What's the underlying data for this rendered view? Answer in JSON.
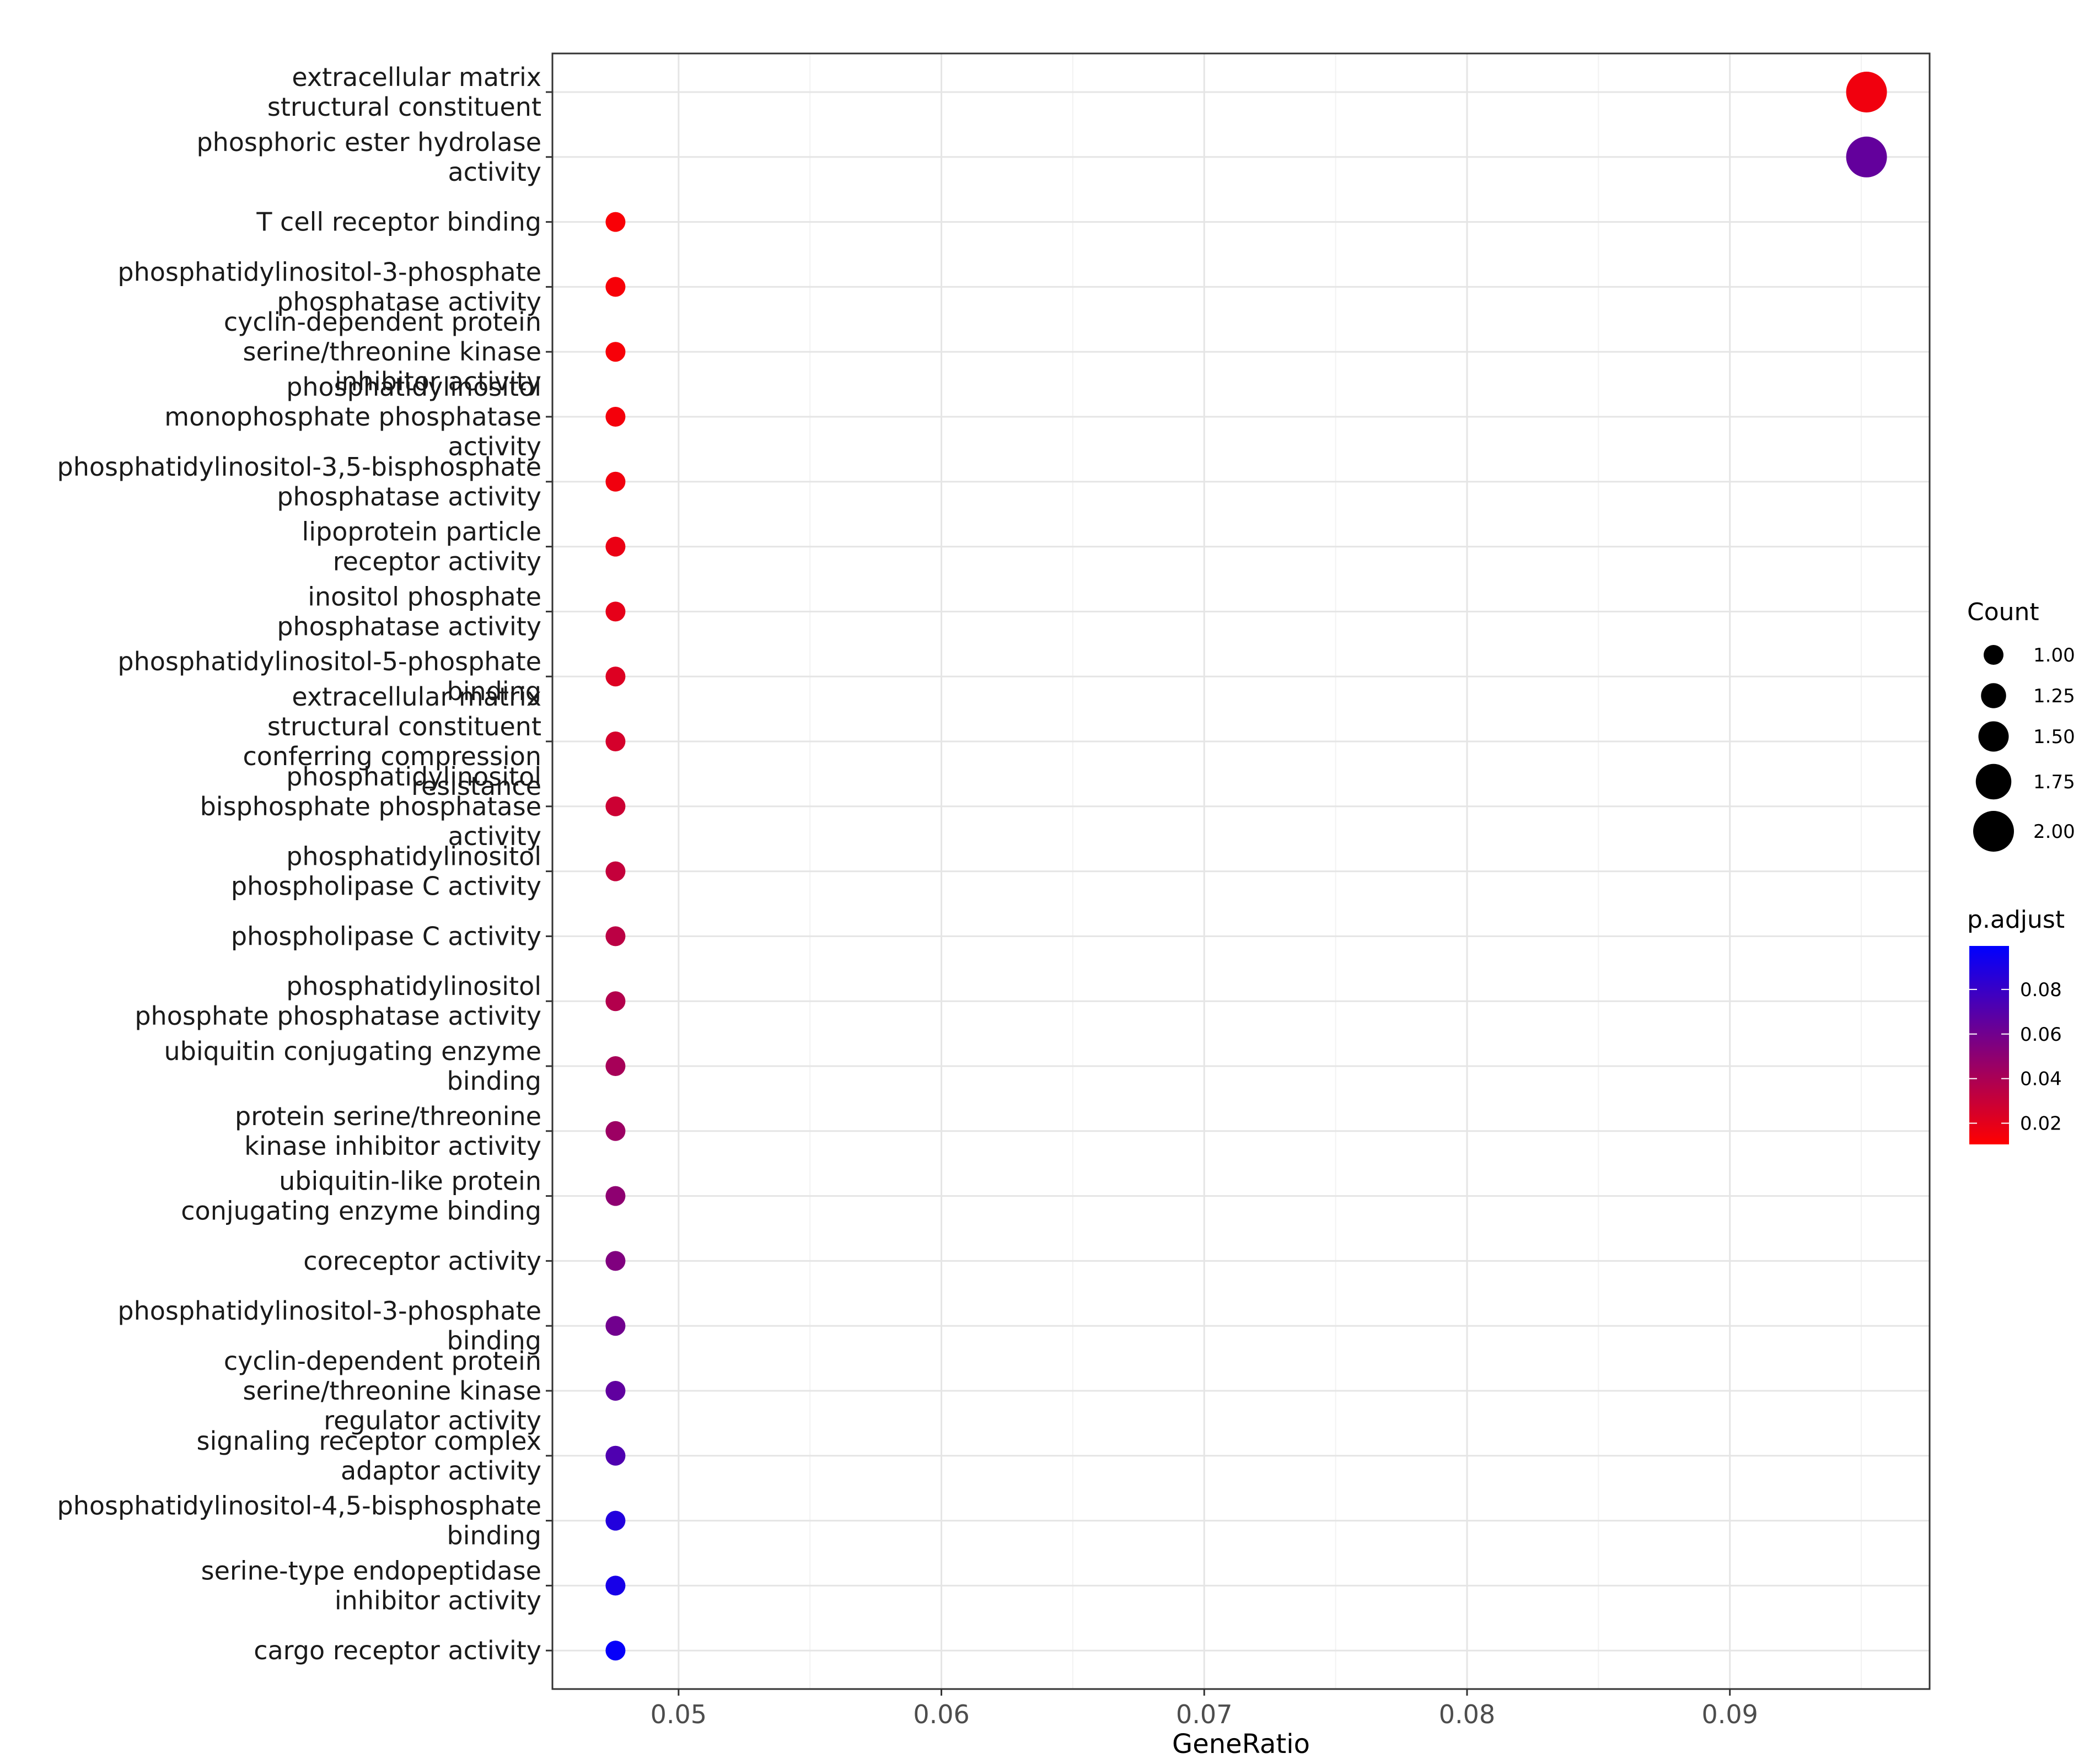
{
  "chart_data": {
    "type": "scatter",
    "xlabel": "GeneRatio",
    "x_ticks": [
      0.05,
      0.06,
      0.07,
      0.08,
      0.09
    ],
    "x_tick_labels": [
      "0.05",
      "0.06",
      "0.07",
      "0.08",
      "0.09"
    ],
    "xlim": [
      0.0452,
      0.0976
    ],
    "grid": true,
    "categories": [
      "extracellular matrix\nstructural constituent",
      "phosphoric ester hydrolase\nactivity",
      "T cell receptor binding",
      "phosphatidylinositol-3-phosphate\nphosphatase activity",
      "cyclin-dependent protein\nserine/threonine kinase\ninhibitor activity",
      "phosphatidylinositol\nmonophosphate phosphatase\nactivity",
      "phosphatidylinositol-3,5-bisphosphate\nphosphatase activity",
      "lipoprotein particle\nreceptor activity",
      "inositol phosphate\nphosphatase activity",
      "phosphatidylinositol-5-phosphate\nbinding",
      "extracellular matrix\nstructural constituent\nconferring compression\nresistance",
      "phosphatidylinositol\nbisphosphate phosphatase\nactivity",
      "phosphatidylinositol\nphospholipase C activity",
      "phospholipase C activity",
      "phosphatidylinositol\nphosphate phosphatase activity",
      "ubiquitin conjugating enzyme\nbinding",
      "protein serine/threonine\nkinase inhibitor activity",
      "ubiquitin-like protein\nconjugating enzyme binding",
      "coreceptor activity",
      "phosphatidylinositol-3-phosphate\nbinding",
      "cyclin-dependent protein\nserine/threonine kinase\nregulator activity",
      "signaling receptor complex\nadaptor activity",
      "phosphatidylinositol-4,5-bisphosphate\nbinding",
      "serine-type endopeptidase\ninhibitor activity",
      "cargo receptor activity"
    ],
    "x": [
      0.0952,
      0.0952,
      0.0476,
      0.0476,
      0.0476,
      0.0476,
      0.0476,
      0.0476,
      0.0476,
      0.0476,
      0.0476,
      0.0476,
      0.0476,
      0.0476,
      0.0476,
      0.0476,
      0.0476,
      0.0476,
      0.0476,
      0.0476,
      0.0476,
      0.0476,
      0.0476,
      0.0476,
      0.0476
    ],
    "count": [
      2,
      2,
      1,
      1,
      1,
      1,
      1,
      1,
      1,
      1,
      1,
      1,
      1,
      1,
      1,
      1,
      1,
      1,
      1,
      1,
      1,
      1,
      1,
      1,
      1
    ],
    "p_adjust": [
      0.015,
      0.065,
      0.012,
      0.013,
      0.013,
      0.014,
      0.015,
      0.017,
      0.019,
      0.022,
      0.025,
      0.028,
      0.031,
      0.034,
      0.037,
      0.041,
      0.045,
      0.05,
      0.055,
      0.06,
      0.066,
      0.072,
      0.088,
      0.092,
      0.098
    ],
    "legend": {
      "size": {
        "title": "Count",
        "values": [
          1.0,
          1.25,
          1.5,
          1.75,
          2.0
        ],
        "labels": [
          "1.00",
          "1.25",
          "1.50",
          "1.75",
          "2.00"
        ]
      },
      "color": {
        "title": "p.adjust",
        "range": [
          0.01,
          0.1
        ],
        "low_color": "#FF0000",
        "high_color": "#0000FF",
        "ticks": [
          0.02,
          0.04,
          0.06,
          0.08
        ],
        "labels": [
          "0.02",
          "0.04",
          "0.06",
          "0.08"
        ]
      },
      "placement": "right"
    }
  }
}
